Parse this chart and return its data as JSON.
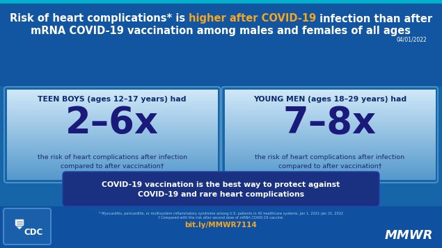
{
  "bg_color": "#1565a8",
  "title_prefix": "Risk of heart complications* is ",
  "title_orange": "higher after COVID-19",
  "title_suffix": " infection than after",
  "title_line2": "mRNA COVID-19 vaccination among males and females of all ages",
  "title_color": "#ffffff",
  "title_orange_color": "#f5a623",
  "date": "04/01/2022",
  "date_color": "#ffffff",
  "card_left_header": "TEEN BOYS (ages 12–17 years) had",
  "card_left_value": "2–6x",
  "card_right_header": "YOUNG MEN (ages 18–29 years) had",
  "card_right_value": "7–8x",
  "card_desc": "the risk of heart complications after infection\ncompared to after vaccination†",
  "card_header_color": "#0d2b6b",
  "card_value_color": "#1a1a7a",
  "card_desc_color": "#1a2a6b",
  "card_border_color": "#5599cc",
  "card_top_color": "#d0e8f8",
  "card_bottom_color": "#5599cc",
  "banner_bg": "#1a3080",
  "banner_line1": "COVID-19 vaccination is the best way to protect against",
  "banner_line2": "COVID-19 and rare heart complications",
  "banner_text_color": "#ffffff",
  "footnote1": "* Myocarditis, pericarditis, or multisystem inflammatory syndrome among U.S. patients in 40 healthcare systems, Jan 1, 2021–Jan 31, 2022",
  "footnote2": "† Compared with the risk after second dose of mRNA COVID-19 vaccine",
  "footnote_color": "#aaccee",
  "link": "bit.ly/MMWR7114",
  "link_color": "#f5a623",
  "mmwr_color": "#ffffff",
  "cdc_box_color": "#1a5faa",
  "cdc_box_border": "#4488cc",
  "bottom_bg": "#1050a0"
}
